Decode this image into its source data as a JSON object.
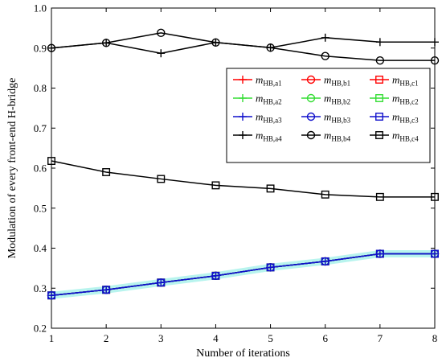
{
  "chart_data": {
    "type": "line",
    "xlabel": "Number of iterations",
    "ylabel": "Modulation of every front-end H-bridge",
    "xlim": [
      1,
      8
    ],
    "ylim": [
      0.2,
      1.0
    ],
    "x": [
      1,
      2,
      3,
      4,
      5,
      6,
      7,
      8
    ],
    "xticks": [
      "1",
      "2",
      "3",
      "4",
      "5",
      "6",
      "7",
      "8"
    ],
    "yticks": [
      "0.2",
      "0.3",
      "0.4",
      "0.5",
      "0.6",
      "0.7",
      "0.8",
      "0.9",
      "1.0"
    ],
    "grid": false,
    "legend_position": "upper-right",
    "series": [
      {
        "name": "mHB,a1",
        "label_main": "m",
        "label_sub": "HB,a1",
        "color": "#ff0000",
        "marker": "plus",
        "values": [
          0.282,
          0.296,
          0.314,
          0.331,
          0.352,
          0.367,
          0.386,
          0.386
        ]
      },
      {
        "name": "mHB,b1",
        "label_main": "m",
        "label_sub": "HB,b1",
        "color": "#ff0000",
        "marker": "circle",
        "values": [
          0.282,
          0.296,
          0.314,
          0.331,
          0.352,
          0.367,
          0.386,
          0.386
        ]
      },
      {
        "name": "mHB,c1",
        "label_main": "m",
        "label_sub": "HB,c1",
        "color": "#ff0000",
        "marker": "square",
        "values": [
          0.282,
          0.296,
          0.314,
          0.331,
          0.352,
          0.367,
          0.386,
          0.386
        ]
      },
      {
        "name": "mHB,a2",
        "label_main": "m",
        "label_sub": "HB,a2",
        "color": "#33dd33",
        "marker": "plus",
        "values": [
          0.282,
          0.296,
          0.314,
          0.331,
          0.352,
          0.367,
          0.386,
          0.386
        ]
      },
      {
        "name": "mHB,b2",
        "label_main": "m",
        "label_sub": "HB,b2",
        "color": "#33dd33",
        "marker": "circle",
        "values": [
          0.282,
          0.296,
          0.314,
          0.331,
          0.352,
          0.367,
          0.386,
          0.386
        ]
      },
      {
        "name": "mHB,c2",
        "label_main": "m",
        "label_sub": "HB,c2",
        "color": "#33dd33",
        "marker": "square",
        "values": [
          0.282,
          0.296,
          0.314,
          0.331,
          0.352,
          0.367,
          0.386,
          0.386
        ]
      },
      {
        "name": "mHB,a3",
        "label_main": "m",
        "label_sub": "HB,a3",
        "color": "#1010cc",
        "marker": "plus",
        "values": [
          0.282,
          0.296,
          0.314,
          0.331,
          0.352,
          0.367,
          0.386,
          0.386
        ]
      },
      {
        "name": "mHB,b3",
        "label_main": "m",
        "label_sub": "HB,b3",
        "color": "#1010cc",
        "marker": "circle",
        "values": [
          0.282,
          0.296,
          0.314,
          0.331,
          0.352,
          0.367,
          0.386,
          0.386
        ]
      },
      {
        "name": "mHB,c3",
        "label_main": "m",
        "label_sub": "HB,c3",
        "color": "#1010cc",
        "marker": "square",
        "values": [
          0.282,
          0.296,
          0.314,
          0.331,
          0.352,
          0.367,
          0.386,
          0.386
        ]
      },
      {
        "name": "mHB,a4",
        "label_main": "m",
        "label_sub": "HB,a4",
        "color": "#000000",
        "marker": "plus",
        "values": [
          0.9,
          0.913,
          0.887,
          0.914,
          0.901,
          0.926,
          0.915,
          0.915
        ]
      },
      {
        "name": "mHB,b4",
        "label_main": "m",
        "label_sub": "HB,b4",
        "color": "#000000",
        "marker": "circle",
        "values": [
          0.9,
          0.913,
          0.938,
          0.914,
          0.901,
          0.88,
          0.869,
          0.869
        ]
      },
      {
        "name": "mHB,c4",
        "label_main": "m",
        "label_sub": "HB,c4",
        "color": "#000000",
        "marker": "square",
        "values": [
          0.618,
          0.59,
          0.573,
          0.557,
          0.549,
          0.534,
          0.528,
          0.528
        ]
      }
    ],
    "legend_order": [
      0,
      1,
      2,
      3,
      4,
      5,
      6,
      7,
      8,
      9,
      10,
      11
    ]
  }
}
